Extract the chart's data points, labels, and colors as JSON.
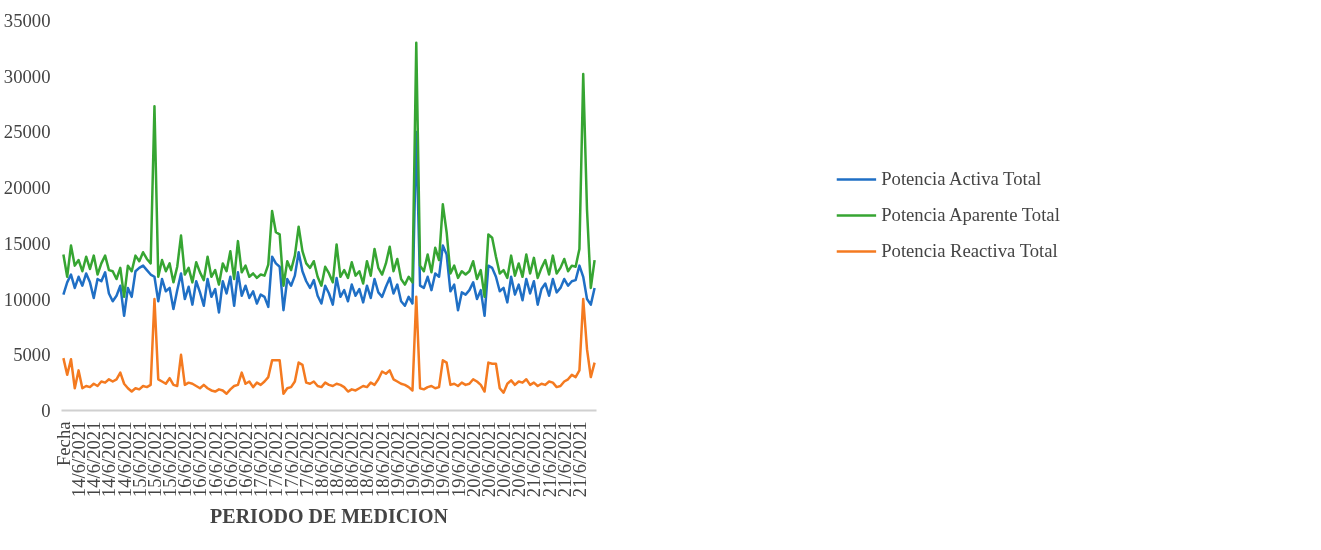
{
  "chart_data": {
    "type": "line",
    "xlabel": "PERIODO DE MEDICION",
    "categories": [
      "Fecha",
      null,
      null,
      null,
      "14/6/2021",
      null,
      null,
      null,
      "14/6/2021",
      null,
      null,
      null,
      "14/6/2021",
      null,
      null,
      null,
      "14/6/2021",
      null,
      null,
      null,
      "15/6/2021",
      null,
      null,
      null,
      "15/6/2021",
      null,
      null,
      null,
      "15/6/2021",
      null,
      null,
      null,
      "16/6/2021",
      null,
      null,
      null,
      "16/6/2021",
      null,
      null,
      null,
      "16/6/2021",
      null,
      null,
      null,
      "16/6/2021",
      null,
      null,
      null,
      "16/6/2021",
      null,
      null,
      null,
      "17/6/2021",
      null,
      null,
      null,
      "17/6/2021",
      null,
      null,
      null,
      "17/6/2021",
      null,
      null,
      null,
      "17/6/2021",
      null,
      null,
      null,
      "18/6/2021",
      null,
      null,
      null,
      "18/6/2021",
      null,
      null,
      null,
      "18/6/2021",
      null,
      null,
      null,
      "18/6/2021",
      null,
      null,
      null,
      "18/6/2021",
      null,
      null,
      null,
      "19/6/2021",
      null,
      null,
      null,
      "19/6/2021",
      null,
      null,
      null,
      "19/6/2021",
      null,
      null,
      null,
      "19/6/2021",
      null,
      null,
      null,
      "19/6/2021",
      null,
      null,
      null,
      "20/6/2021",
      null,
      null,
      null,
      "20/6/2021",
      null,
      null,
      null,
      "20/6/2021",
      null,
      null,
      null,
      "20/6/2021",
      null,
      null,
      null,
      "21/6/2021",
      null,
      null,
      null,
      "21/6/2021",
      null,
      null,
      null,
      "21/6/2021",
      null,
      null,
      null,
      "21/6/2021",
      null,
      null,
      null,
      null
    ],
    "series": [
      {
        "name": "Potencia Activa Total",
        "color": "#1f6fc5",
        "values": [
          10400,
          11500,
          12200,
          11000,
          12000,
          11200,
          12300,
          11500,
          10100,
          11800,
          11600,
          12400,
          10500,
          9800,
          10300,
          11200,
          8500,
          11000,
          10200,
          12500,
          12800,
          13000,
          12600,
          12200,
          12000,
          9800,
          11800,
          10700,
          11000,
          9100,
          10800,
          12300,
          10000,
          11100,
          9500,
          11600,
          10600,
          9400,
          11800,
          10200,
          10900,
          8800,
          11600,
          10500,
          12000,
          9400,
          12400,
          10300,
          11200,
          10100,
          10700,
          9600,
          10400,
          10200,
          9300,
          13800,
          13200,
          12900,
          9000,
          11800,
          11200,
          12100,
          14200,
          12500,
          11600,
          11000,
          11700,
          10300,
          9600,
          11200,
          10500,
          9500,
          11900,
          10200,
          10800,
          9800,
          11300,
          10300,
          10900,
          9700,
          11200,
          10100,
          11800,
          10600,
          10200,
          11100,
          11900,
          10500,
          11300,
          9800,
          9400,
          10200,
          9600,
          25000,
          11200,
          11000,
          12000,
          10800,
          12300,
          12000,
          14800,
          14000,
          10700,
          11300,
          9000,
          10600,
          10400,
          10800,
          11500,
          10000,
          10800,
          8500,
          13000,
          12800,
          12000,
          10700,
          11000,
          9700,
          12000,
          10400,
          11300,
          9900,
          11800,
          10500,
          11600,
          9500,
          10900,
          11400,
          10300,
          11800,
          10600,
          11000,
          11800,
          11200,
          11600,
          11700,
          13000,
          12000,
          10000,
          9500,
          11000
        ]
      },
      {
        "name": "Potencia Aparente Total",
        "color": "#36a532",
        "values": [
          14000,
          12000,
          14800,
          13000,
          13500,
          12500,
          13800,
          12700,
          13900,
          12200,
          13200,
          13900,
          12600,
          12500,
          11800,
          12800,
          10200,
          13000,
          12500,
          13900,
          13400,
          14200,
          13600,
          13200,
          27300,
          12000,
          13500,
          12500,
          13200,
          11500,
          12900,
          15700,
          12200,
          12800,
          11500,
          13300,
          12400,
          11700,
          13800,
          12000,
          12600,
          11300,
          13200,
          12500,
          14300,
          11800,
          15200,
          12400,
          13000,
          12000,
          12300,
          11900,
          12200,
          12100,
          13100,
          17900,
          16000,
          15800,
          11200,
          13400,
          12600,
          13900,
          16500,
          14300,
          13200,
          12800,
          13400,
          12000,
          11200,
          12900,
          12300,
          11500,
          14900,
          12000,
          12600,
          11900,
          13300,
          12100,
          12500,
          11400,
          13400,
          12100,
          14500,
          12800,
          12200,
          13200,
          14700,
          12500,
          13600,
          11800,
          11300,
          12000,
          11500,
          33000,
          13000,
          12500,
          14000,
          12400,
          14600,
          13500,
          18500,
          16000,
          12300,
          13000,
          11900,
          12500,
          12200,
          12500,
          13400,
          11800,
          12600,
          10200,
          15800,
          15500,
          13800,
          12300,
          12600,
          11900,
          13900,
          12100,
          13200,
          12000,
          14000,
          12300,
          13700,
          11900,
          12800,
          13500,
          12200,
          13900,
          12300,
          12800,
          13600,
          12500,
          13000,
          12900,
          14500,
          30200,
          18000,
          11000,
          13500
        ]
      },
      {
        "name": "Potencia Reactiva Total",
        "color": "#f47a20",
        "values": [
          4700,
          3200,
          4600,
          2000,
          3600,
          2000,
          2200,
          2100,
          2400,
          2200,
          2600,
          2500,
          2800,
          2600,
          2800,
          3400,
          2400,
          2000,
          1700,
          2000,
          1900,
          2200,
          2100,
          2300,
          10000,
          2800,
          2600,
          2400,
          2900,
          2300,
          2200,
          5000,
          2300,
          2500,
          2400,
          2200,
          2000,
          2300,
          2000,
          1800,
          1700,
          1900,
          1800,
          1500,
          1900,
          2200,
          2300,
          3400,
          2400,
          2600,
          2100,
          2500,
          2300,
          2600,
          3000,
          4500,
          4500,
          4500,
          1500,
          2000,
          2100,
          2600,
          4300,
          4100,
          2500,
          2400,
          2600,
          2200,
          2100,
          2500,
          2300,
          2200,
          2400,
          2300,
          2100,
          1700,
          1900,
          1800,
          2000,
          2200,
          2100,
          2500,
          2300,
          2800,
          3500,
          3300,
          3600,
          2800,
          2600,
          2400,
          2300,
          2100,
          1800,
          10200,
          2000,
          1900,
          2100,
          2200,
          2000,
          2100,
          4500,
          4300,
          2300,
          2400,
          2200,
          2500,
          2300,
          2400,
          2800,
          2600,
          2300,
          1700,
          4300,
          4200,
          4200,
          2000,
          1600,
          2400,
          2700,
          2300,
          2600,
          2500,
          2800,
          2300,
          2500,
          2200,
          2400,
          2300,
          2600,
          2500,
          2100,
          2200,
          2600,
          2800,
          3200,
          3000,
          3600,
          10000,
          5500,
          3000,
          4300
        ]
      }
    ],
    "ylim": [
      0,
      35000
    ],
    "yticks": [
      0,
      5000,
      10000,
      15000,
      20000,
      25000,
      30000,
      35000
    ],
    "grid": false,
    "legend": "right",
    "line_style": "solid"
  }
}
